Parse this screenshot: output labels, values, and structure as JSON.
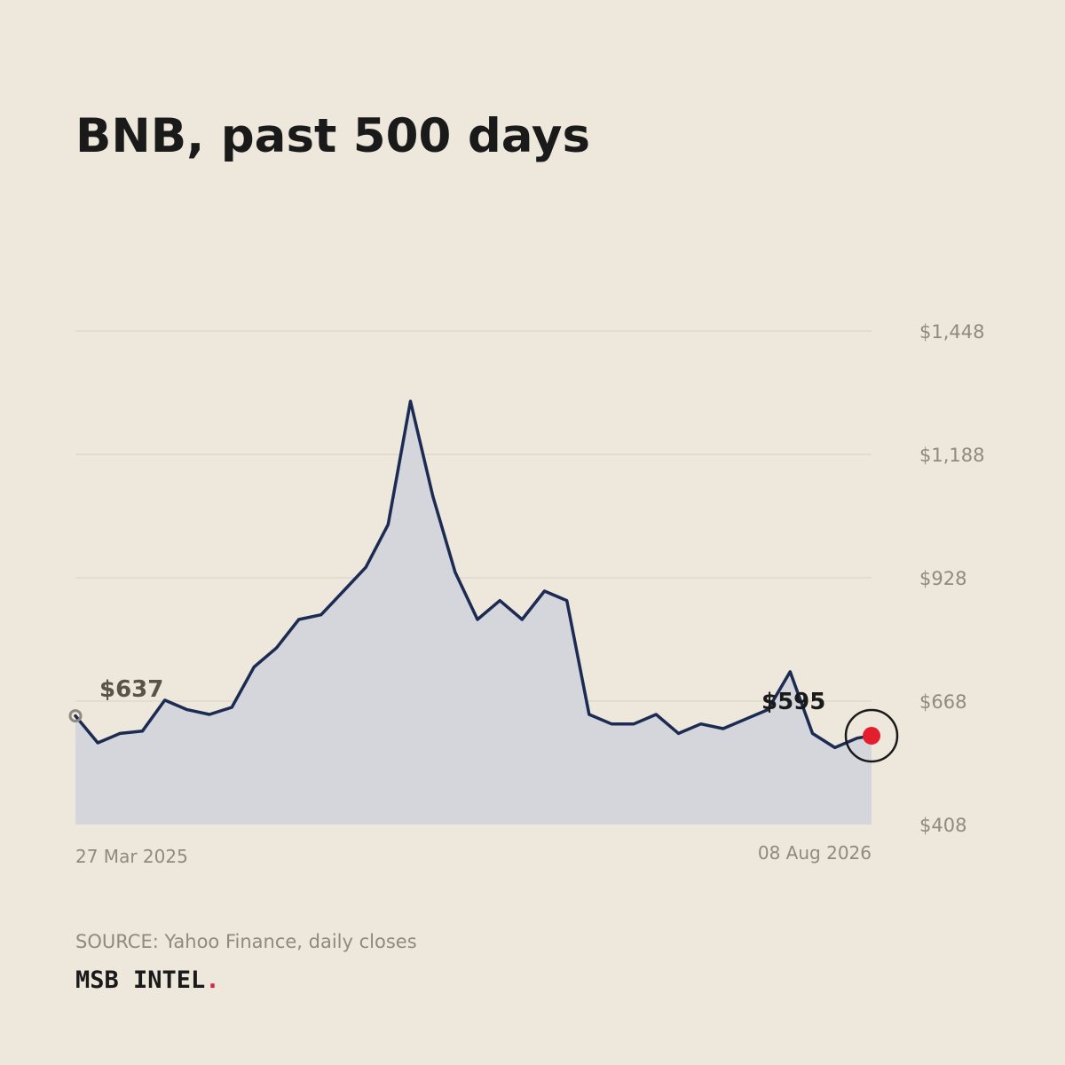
{
  "title": "BNB, past 500 days",
  "source_text": "SOURCE: Yahoo Finance, daily closes",
  "brand": {
    "name": "MSB INTEL",
    "dot": "."
  },
  "colors": {
    "background": "#EEE8DC",
    "line": "#1B2B52",
    "area": "#D4D6DC",
    "grid": "#D8D2C6",
    "muted_text": "#8F8A80",
    "start_label": "#5A5448",
    "end_label": "#1A1A1A",
    "last_point": "#E51E2D",
    "start_marker": "#8F8A80"
  },
  "chart_data": {
    "type": "area",
    "title": "BNB, past 500 days",
    "xlabel": "",
    "ylabel": "",
    "ylim": [
      408,
      1448
    ],
    "yticks": [
      408,
      668,
      928,
      1188,
      1448
    ],
    "ytick_labels": [
      "$408",
      "$668",
      "$928",
      "$1,188",
      "$1,448"
    ],
    "grid": "horizontal",
    "x_start_label": "27 Mar 2025",
    "x_end_label": "08 Aug 2026",
    "start_value_label": "$637",
    "end_value_label": "$595",
    "series": [
      {
        "x": [
          "2025-03-27",
          "2025-04-10",
          "2025-04-24",
          "2025-05-08",
          "2025-05-22",
          "2025-06-05",
          "2025-06-19",
          "2025-07-03",
          "2025-07-17",
          "2025-07-31",
          "2025-08-14",
          "2025-08-28",
          "2025-09-11",
          "2025-09-25",
          "2025-10-09",
          "2025-10-23",
          "2025-11-06",
          "2025-11-20",
          "2025-12-04",
          "2025-12-18",
          "2026-01-01",
          "2026-01-15",
          "2026-01-29",
          "2026-02-12",
          "2026-02-26",
          "2026-03-12",
          "2026-03-26",
          "2026-04-09",
          "2026-04-23",
          "2026-05-07",
          "2026-05-21",
          "2026-06-04",
          "2026-06-18",
          "2026-07-02",
          "2026-07-16",
          "2026-07-30",
          "2026-08-08"
        ],
        "values": [
          637,
          580,
          600,
          605,
          670,
          650,
          640,
          655,
          740,
          780,
          840,
          850,
          900,
          950,
          1040,
          1300,
          1100,
          940,
          840,
          880,
          840,
          900,
          880,
          640,
          620,
          620,
          640,
          600,
          620,
          610,
          630,
          650,
          730,
          600,
          570,
          590,
          595
        ]
      }
    ]
  }
}
